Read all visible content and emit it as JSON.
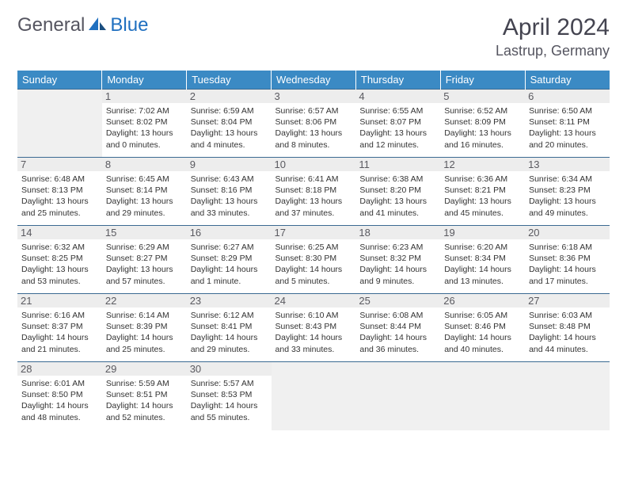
{
  "logo": {
    "text_gray": "General",
    "text_blue": "Blue"
  },
  "title": "April 2024",
  "location": "Lastrup, Germany",
  "colors": {
    "header_bg": "#3b8ac4",
    "header_text": "#ffffff",
    "cell_border": "#3b6a92",
    "daynum_bg": "#ededed",
    "empty_bg": "#f0f0f0",
    "logo_blue": "#2070c0",
    "logo_gray": "#555560"
  },
  "weekdays": [
    "Sunday",
    "Monday",
    "Tuesday",
    "Wednesday",
    "Thursday",
    "Friday",
    "Saturday"
  ],
  "font": {
    "body_family": "Arial",
    "detail_size_pt": 10.5,
    "header_size_pt": 13,
    "title_size_pt": 30,
    "location_size_pt": 18
  },
  "weeks": [
    [
      null,
      {
        "num": "1",
        "sunrise": "Sunrise: 7:02 AM",
        "sunset": "Sunset: 8:02 PM",
        "day1": "Daylight: 13 hours",
        "day2": "and 0 minutes."
      },
      {
        "num": "2",
        "sunrise": "Sunrise: 6:59 AM",
        "sunset": "Sunset: 8:04 PM",
        "day1": "Daylight: 13 hours",
        "day2": "and 4 minutes."
      },
      {
        "num": "3",
        "sunrise": "Sunrise: 6:57 AM",
        "sunset": "Sunset: 8:06 PM",
        "day1": "Daylight: 13 hours",
        "day2": "and 8 minutes."
      },
      {
        "num": "4",
        "sunrise": "Sunrise: 6:55 AM",
        "sunset": "Sunset: 8:07 PM",
        "day1": "Daylight: 13 hours",
        "day2": "and 12 minutes."
      },
      {
        "num": "5",
        "sunrise": "Sunrise: 6:52 AM",
        "sunset": "Sunset: 8:09 PM",
        "day1": "Daylight: 13 hours",
        "day2": "and 16 minutes."
      },
      {
        "num": "6",
        "sunrise": "Sunrise: 6:50 AM",
        "sunset": "Sunset: 8:11 PM",
        "day1": "Daylight: 13 hours",
        "day2": "and 20 minutes."
      }
    ],
    [
      {
        "num": "7",
        "sunrise": "Sunrise: 6:48 AM",
        "sunset": "Sunset: 8:13 PM",
        "day1": "Daylight: 13 hours",
        "day2": "and 25 minutes."
      },
      {
        "num": "8",
        "sunrise": "Sunrise: 6:45 AM",
        "sunset": "Sunset: 8:14 PM",
        "day1": "Daylight: 13 hours",
        "day2": "and 29 minutes."
      },
      {
        "num": "9",
        "sunrise": "Sunrise: 6:43 AM",
        "sunset": "Sunset: 8:16 PM",
        "day1": "Daylight: 13 hours",
        "day2": "and 33 minutes."
      },
      {
        "num": "10",
        "sunrise": "Sunrise: 6:41 AM",
        "sunset": "Sunset: 8:18 PM",
        "day1": "Daylight: 13 hours",
        "day2": "and 37 minutes."
      },
      {
        "num": "11",
        "sunrise": "Sunrise: 6:38 AM",
        "sunset": "Sunset: 8:20 PM",
        "day1": "Daylight: 13 hours",
        "day2": "and 41 minutes."
      },
      {
        "num": "12",
        "sunrise": "Sunrise: 6:36 AM",
        "sunset": "Sunset: 8:21 PM",
        "day1": "Daylight: 13 hours",
        "day2": "and 45 minutes."
      },
      {
        "num": "13",
        "sunrise": "Sunrise: 6:34 AM",
        "sunset": "Sunset: 8:23 PM",
        "day1": "Daylight: 13 hours",
        "day2": "and 49 minutes."
      }
    ],
    [
      {
        "num": "14",
        "sunrise": "Sunrise: 6:32 AM",
        "sunset": "Sunset: 8:25 PM",
        "day1": "Daylight: 13 hours",
        "day2": "and 53 minutes."
      },
      {
        "num": "15",
        "sunrise": "Sunrise: 6:29 AM",
        "sunset": "Sunset: 8:27 PM",
        "day1": "Daylight: 13 hours",
        "day2": "and 57 minutes."
      },
      {
        "num": "16",
        "sunrise": "Sunrise: 6:27 AM",
        "sunset": "Sunset: 8:29 PM",
        "day1": "Daylight: 14 hours",
        "day2": "and 1 minute."
      },
      {
        "num": "17",
        "sunrise": "Sunrise: 6:25 AM",
        "sunset": "Sunset: 8:30 PM",
        "day1": "Daylight: 14 hours",
        "day2": "and 5 minutes."
      },
      {
        "num": "18",
        "sunrise": "Sunrise: 6:23 AM",
        "sunset": "Sunset: 8:32 PM",
        "day1": "Daylight: 14 hours",
        "day2": "and 9 minutes."
      },
      {
        "num": "19",
        "sunrise": "Sunrise: 6:20 AM",
        "sunset": "Sunset: 8:34 PM",
        "day1": "Daylight: 14 hours",
        "day2": "and 13 minutes."
      },
      {
        "num": "20",
        "sunrise": "Sunrise: 6:18 AM",
        "sunset": "Sunset: 8:36 PM",
        "day1": "Daylight: 14 hours",
        "day2": "and 17 minutes."
      }
    ],
    [
      {
        "num": "21",
        "sunrise": "Sunrise: 6:16 AM",
        "sunset": "Sunset: 8:37 PM",
        "day1": "Daylight: 14 hours",
        "day2": "and 21 minutes."
      },
      {
        "num": "22",
        "sunrise": "Sunrise: 6:14 AM",
        "sunset": "Sunset: 8:39 PM",
        "day1": "Daylight: 14 hours",
        "day2": "and 25 minutes."
      },
      {
        "num": "23",
        "sunrise": "Sunrise: 6:12 AM",
        "sunset": "Sunset: 8:41 PM",
        "day1": "Daylight: 14 hours",
        "day2": "and 29 minutes."
      },
      {
        "num": "24",
        "sunrise": "Sunrise: 6:10 AM",
        "sunset": "Sunset: 8:43 PM",
        "day1": "Daylight: 14 hours",
        "day2": "and 33 minutes."
      },
      {
        "num": "25",
        "sunrise": "Sunrise: 6:08 AM",
        "sunset": "Sunset: 8:44 PM",
        "day1": "Daylight: 14 hours",
        "day2": "and 36 minutes."
      },
      {
        "num": "26",
        "sunrise": "Sunrise: 6:05 AM",
        "sunset": "Sunset: 8:46 PM",
        "day1": "Daylight: 14 hours",
        "day2": "and 40 minutes."
      },
      {
        "num": "27",
        "sunrise": "Sunrise: 6:03 AM",
        "sunset": "Sunset: 8:48 PM",
        "day1": "Daylight: 14 hours",
        "day2": "and 44 minutes."
      }
    ],
    [
      {
        "num": "28",
        "sunrise": "Sunrise: 6:01 AM",
        "sunset": "Sunset: 8:50 PM",
        "day1": "Daylight: 14 hours",
        "day2": "and 48 minutes."
      },
      {
        "num": "29",
        "sunrise": "Sunrise: 5:59 AM",
        "sunset": "Sunset: 8:51 PM",
        "day1": "Daylight: 14 hours",
        "day2": "and 52 minutes."
      },
      {
        "num": "30",
        "sunrise": "Sunrise: 5:57 AM",
        "sunset": "Sunset: 8:53 PM",
        "day1": "Daylight: 14 hours",
        "day2": "and 55 minutes."
      },
      null,
      null,
      null,
      null
    ]
  ]
}
